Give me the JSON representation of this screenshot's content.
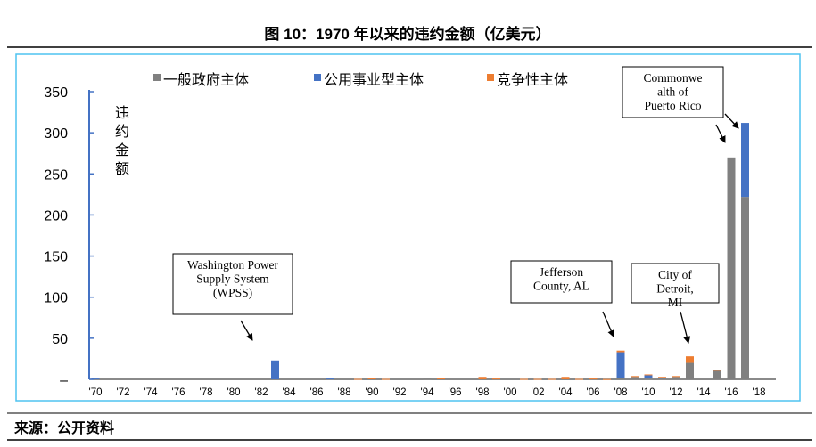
{
  "header": {
    "title": "图 10：1970 年以来的违约金额（亿美元）"
  },
  "footer": {
    "source": "来源：公开资料"
  },
  "chart_data": {
    "type": "bar",
    "stacked": true,
    "title": "图 10：1970 年以来的违约金额（亿美元）",
    "ylabel": "违约金额",
    "ylim": [
      0,
      350
    ],
    "yticks": [
      0,
      50,
      100,
      150,
      200,
      250,
      300,
      350
    ],
    "ytick_labels": [
      "–",
      "50",
      "100",
      "150",
      "200",
      "250",
      "300",
      "350"
    ],
    "xtick_labels": [
      "'70",
      "'72",
      "'74",
      "'76",
      "'78",
      "'80",
      "'82",
      "'84",
      "'86",
      "'88",
      "'90",
      "'92",
      "'94",
      "'96",
      "'98",
      "'00",
      "'02",
      "'04",
      "'06",
      "'08",
      "'10",
      "'12",
      "'14",
      "'16",
      "'18"
    ],
    "legend_position": "top",
    "years": [
      1970,
      1983,
      1987,
      1989,
      1990,
      1991,
      1994,
      1995,
      1998,
      1999,
      2001,
      2002,
      2003,
      2004,
      2005,
      2006,
      2007,
      2008,
      2009,
      2010,
      2011,
      2012,
      2013,
      2015,
      2016,
      2017
    ],
    "series": [
      {
        "name": "一般政府主体",
        "color": "#808080",
        "values": [
          0,
          0,
          0,
          0,
          0,
          0,
          1,
          0,
          0,
          0,
          0,
          0,
          0,
          0,
          0,
          0,
          0,
          2,
          3,
          1,
          1,
          3,
          20,
          11,
          270,
          222
        ]
      },
      {
        "name": "公用事业型主体",
        "color": "#4472c4",
        "values": [
          1,
          23,
          1,
          0,
          0,
          0,
          0,
          0,
          0,
          0,
          0,
          0,
          0,
          0,
          0,
          0,
          0,
          31,
          0,
          4,
          1,
          0,
          0,
          0,
          0,
          90
        ]
      },
      {
        "name": "竞争性主体",
        "color": "#ed7d31",
        "values": [
          0,
          0,
          0,
          0.5,
          2,
          0.5,
          0,
          2,
          3,
          1,
          0.5,
          0.5,
          0.5,
          3,
          0.5,
          1,
          0.3,
          2,
          1,
          1,
          1,
          1,
          8,
          0.5,
          0,
          0
        ]
      }
    ],
    "annotations": [
      {
        "text": [
          "Washington Power",
          "Supply System",
          "(WPSS)"
        ],
        "year": 1983
      },
      {
        "text": [
          "Jefferson",
          "County, AL"
        ],
        "year": 2008
      },
      {
        "text": [
          "City of",
          "Detroit,",
          "MI"
        ],
        "year": 2013
      },
      {
        "text": [
          "Commonwe",
          "alth of",
          "Puerto Rico"
        ],
        "year": 2017
      }
    ]
  }
}
